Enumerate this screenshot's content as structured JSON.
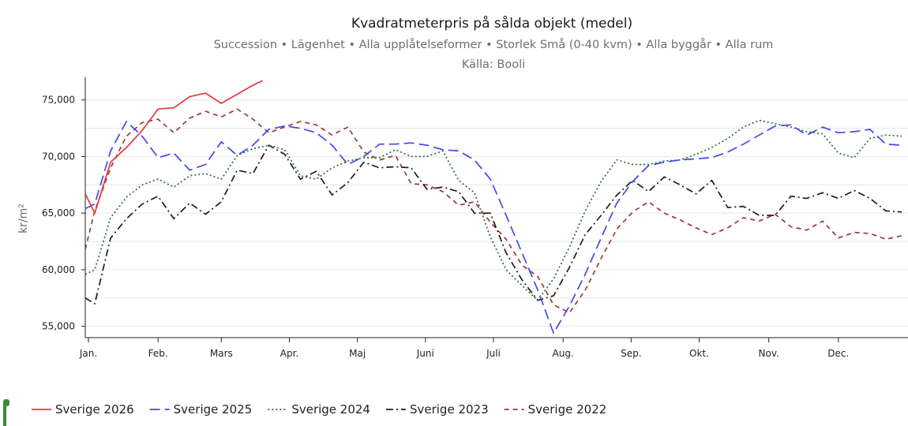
{
  "chart_data": {
    "type": "line",
    "title": "Kvadratmeterpris på sålda objekt (medel)",
    "subtitle": "Succession • Lägenhet • Alla upplåtelseformer • Storlek Små (0-40 kvm) • Alla byggår • Alla rum",
    "source": "Källa: Booli",
    "ylabel": "kr/m²",
    "xlabel": "",
    "x_unit": "week",
    "xlim": [
      0,
      52
    ],
    "ylim": [
      54000,
      77000
    ],
    "yticks": [
      55000,
      60000,
      65000,
      70000,
      75000
    ],
    "ytick_labels": [
      "55,000",
      "60,000",
      "65,000",
      "70,000",
      "75,000"
    ],
    "month_ticks": [
      {
        "label": "Jan.",
        "week": 0.2
      },
      {
        "label": "Feb.",
        "week": 4.6
      },
      {
        "label": "Mars",
        "week": 8.6
      },
      {
        "label": "Apr.",
        "week": 12.9
      },
      {
        "label": "Maj",
        "week": 17.2
      },
      {
        "label": "Juni",
        "week": 21.5
      },
      {
        "label": "Juli",
        "week": 25.8
      },
      {
        "label": "Aug.",
        "week": 30.2
      },
      {
        "label": "Sep.",
        "week": 34.5
      },
      {
        "label": "Okt.",
        "week": 38.8
      },
      {
        "label": "Nov.",
        "week": 43.2
      },
      {
        "label": "Dec.",
        "week": 47.6
      }
    ],
    "grid": "horizontal",
    "legend_position": "bottom-left",
    "series": [
      {
        "name": "Sverige 2026",
        "color": "#e2393b",
        "dash": "solid",
        "x": [
          0,
          0.6,
          1.6,
          2.6,
          3.6,
          4.6,
          5.6,
          6.6,
          7.6,
          8.6,
          9.6,
          10.6,
          11.2
        ],
        "values": [
          66700,
          65000,
          69500,
          70800,
          72300,
          74200,
          74300,
          75300,
          75600,
          74700,
          75500,
          76300,
          76700
        ]
      },
      {
        "name": "Sverige 2025",
        "color": "#4747e8",
        "dash": "dashed",
        "x": [
          0,
          0.6,
          1.6,
          2.6,
          3.6,
          4.6,
          5.6,
          6.6,
          7.6,
          8.6,
          9.6,
          10.6,
          11.6,
          12.6,
          13.6,
          14.6,
          15.6,
          16.6,
          17.6,
          18.6,
          19.6,
          20.6,
          21.6,
          22.6,
          23.6,
          24.6,
          25.6,
          26.6,
          27.6,
          28.6,
          29.6,
          30.6,
          31.6,
          32.6,
          33.6,
          34.6,
          35.6,
          36.6,
          37.6,
          38.6,
          39.6,
          40.6,
          41.6,
          42.6,
          43.6,
          44.6,
          45.6,
          46.6,
          47.6,
          48.6,
          49.6,
          50.6,
          51.6
        ],
        "values": [
          65400,
          65800,
          70500,
          73100,
          71800,
          69900,
          70300,
          68800,
          69300,
          71300,
          70100,
          71000,
          72400,
          72700,
          72500,
          72100,
          71000,
          69300,
          70000,
          71100,
          71100,
          71200,
          71000,
          70600,
          70500,
          69700,
          68000,
          64800,
          61500,
          58200,
          54400,
          56800,
          59600,
          62800,
          65900,
          67800,
          69200,
          69500,
          69700,
          69800,
          69900,
          70400,
          71100,
          71900,
          72700,
          72800,
          71900,
          72600,
          72100,
          72200,
          72400,
          71100,
          71000
        ]
      },
      {
        "name": "Sverige 2024",
        "color": "#2f6b3a",
        "dash": "dotted",
        "x": [
          0,
          0.6,
          1.6,
          2.6,
          3.6,
          4.6,
          5.6,
          6.6,
          7.6,
          8.6,
          9.6,
          10.6,
          11.6,
          12.6,
          13.6,
          14.6,
          15.6,
          16.6,
          17.6,
          18.6,
          19.6,
          20.6,
          21.6,
          22.6,
          23.6,
          24.6,
          25.6,
          26.6,
          27.6,
          28.6,
          29.6,
          30.6,
          31.6,
          32.6,
          33.6,
          34.6,
          35.6,
          36.6,
          37.6,
          38.6,
          39.6,
          40.6,
          41.6,
          42.6,
          43.6,
          44.6,
          45.6,
          46.6,
          47.6,
          48.6,
          49.6,
          50.6,
          51.6
        ],
        "values": [
          59600,
          60000,
          64600,
          66400,
          67500,
          68000,
          67300,
          68300,
          68500,
          68000,
          70100,
          70700,
          71000,
          70600,
          68300,
          68000,
          69000,
          69600,
          69900,
          69900,
          70600,
          70000,
          70000,
          70500,
          67900,
          66800,
          62900,
          60000,
          58600,
          57300,
          59200,
          62000,
          65200,
          67800,
          69700,
          69300,
          69300,
          69600,
          69700,
          70200,
          70800,
          71600,
          72600,
          73200,
          72900,
          72600,
          72200,
          72000,
          70300,
          69900,
          71600,
          71900,
          71800
        ]
      },
      {
        "name": "Sverige 2023",
        "color": "#1e1e1e",
        "dash": "dashdot",
        "x": [
          0,
          0.6,
          1.6,
          2.6,
          3.6,
          4.6,
          5.6,
          6.6,
          7.6,
          8.6,
          9.6,
          10.6,
          11.6,
          12.6,
          13.6,
          14.6,
          15.6,
          16.6,
          17.6,
          18.6,
          19.6,
          20.6,
          21.6,
          22.6,
          23.6,
          24.6,
          25.6,
          26.6,
          27.6,
          28.6,
          29.6,
          30.6,
          31.6,
          32.6,
          33.6,
          34.6,
          35.6,
          36.6,
          37.6,
          38.6,
          39.6,
          40.6,
          41.6,
          42.6,
          43.6,
          44.6,
          45.6,
          46.6,
          47.6,
          48.6,
          49.6,
          50.6,
          51.6
        ],
        "values": [
          57500,
          57000,
          62800,
          64500,
          65800,
          66500,
          64500,
          65900,
          64900,
          66000,
          68800,
          68500,
          71000,
          70200,
          68000,
          68700,
          66600,
          67700,
          69500,
          69000,
          69100,
          69000,
          67100,
          67300,
          66900,
          65000,
          65000,
          61500,
          59100,
          57300,
          57700,
          60200,
          63100,
          64800,
          66600,
          67900,
          66900,
          68200,
          67500,
          66700,
          67900,
          65500,
          65600,
          64800,
          64800,
          66500,
          66300,
          66800,
          66300,
          67000,
          66300,
          65200,
          65100
        ]
      },
      {
        "name": "Sverige 2022",
        "color": "#9a3a36",
        "dash": "shortdash",
        "x": [
          0,
          0.6,
          1.6,
          2.6,
          3.6,
          4.6,
          5.6,
          6.6,
          7.6,
          8.6,
          9.6,
          10.6,
          11.6,
          12.6,
          13.6,
          14.6,
          15.6,
          16.6,
          17.6,
          18.6,
          19.6,
          20.6,
          21.6,
          22.6,
          23.6,
          24.6,
          25.6,
          26.6,
          27.6,
          28.6,
          29.6,
          30.6,
          31.6,
          32.6,
          33.6,
          34.6,
          35.6,
          36.6,
          37.6,
          38.6,
          39.6,
          40.6,
          41.6,
          42.6,
          43.6,
          44.6,
          45.6,
          46.6,
          47.6,
          48.6,
          49.6,
          50.6,
          51.6
        ],
        "values": [
          61800,
          65200,
          69000,
          71800,
          73000,
          73300,
          72100,
          73400,
          74000,
          73500,
          74200,
          73300,
          72100,
          72600,
          73100,
          72800,
          71900,
          72600,
          70400,
          69700,
          70100,
          67600,
          67500,
          66900,
          65700,
          66000,
          64200,
          62700,
          60400,
          59400,
          56900,
          56200,
          58200,
          61000,
          63600,
          65100,
          66000,
          65000,
          64400,
          63700,
          63100,
          63700,
          64600,
          64300,
          64900,
          63800,
          63500,
          64300,
          62800,
          63300,
          63200,
          62700,
          63000
        ]
      }
    ]
  }
}
